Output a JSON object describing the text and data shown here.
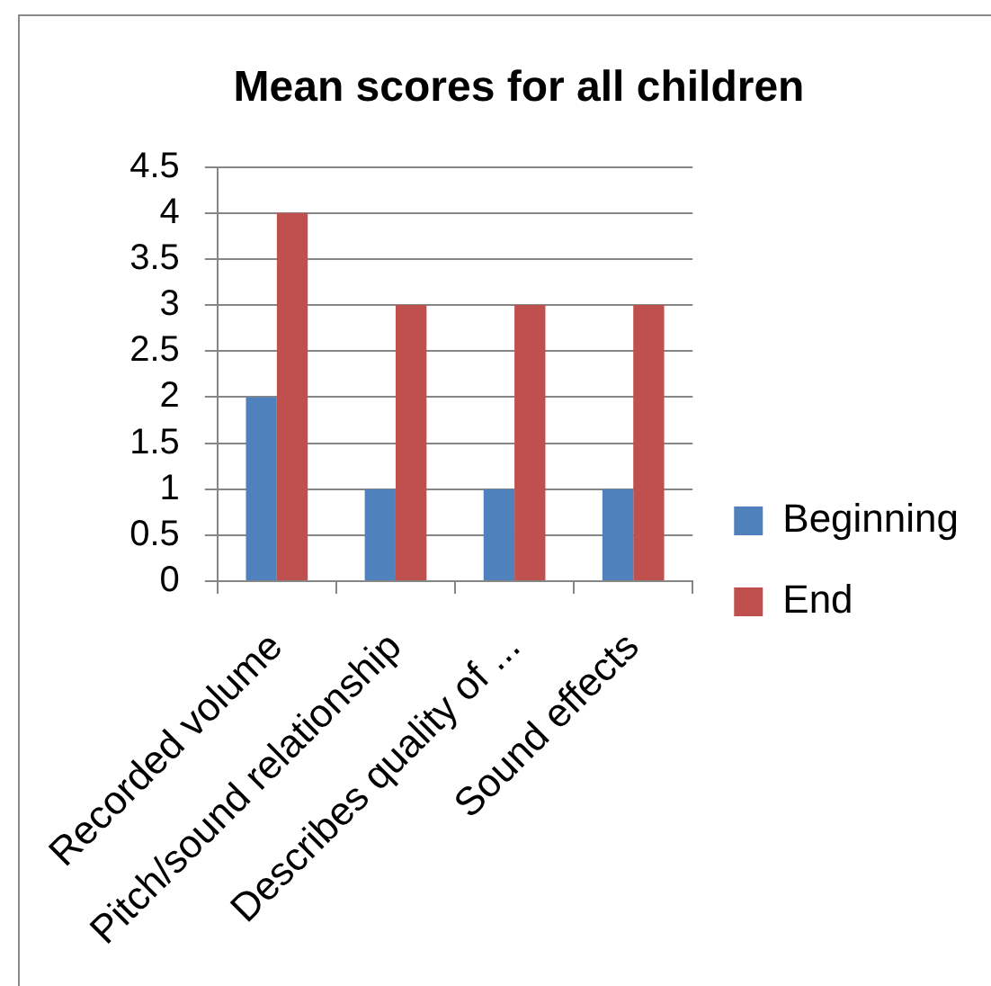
{
  "chart_data": {
    "type": "bar",
    "title": "Mean scores for all children",
    "categories": [
      "Recorded volume",
      "Pitch/sound relationship",
      "Describes quality of ...",
      "Sound effects"
    ],
    "series": [
      {
        "name": "Beginning",
        "color": "#4f81bd",
        "values": [
          2,
          1,
          1,
          1
        ]
      },
      {
        "name": "End",
        "color": "#c0504d",
        "values": [
          4,
          3,
          3,
          3
        ]
      }
    ],
    "ylim": [
      0,
      4.5
    ],
    "yticks": [
      0,
      0.5,
      1,
      1.5,
      2,
      2.5,
      3,
      3.5,
      4,
      4.5
    ],
    "grid": "y",
    "legend": "right"
  }
}
